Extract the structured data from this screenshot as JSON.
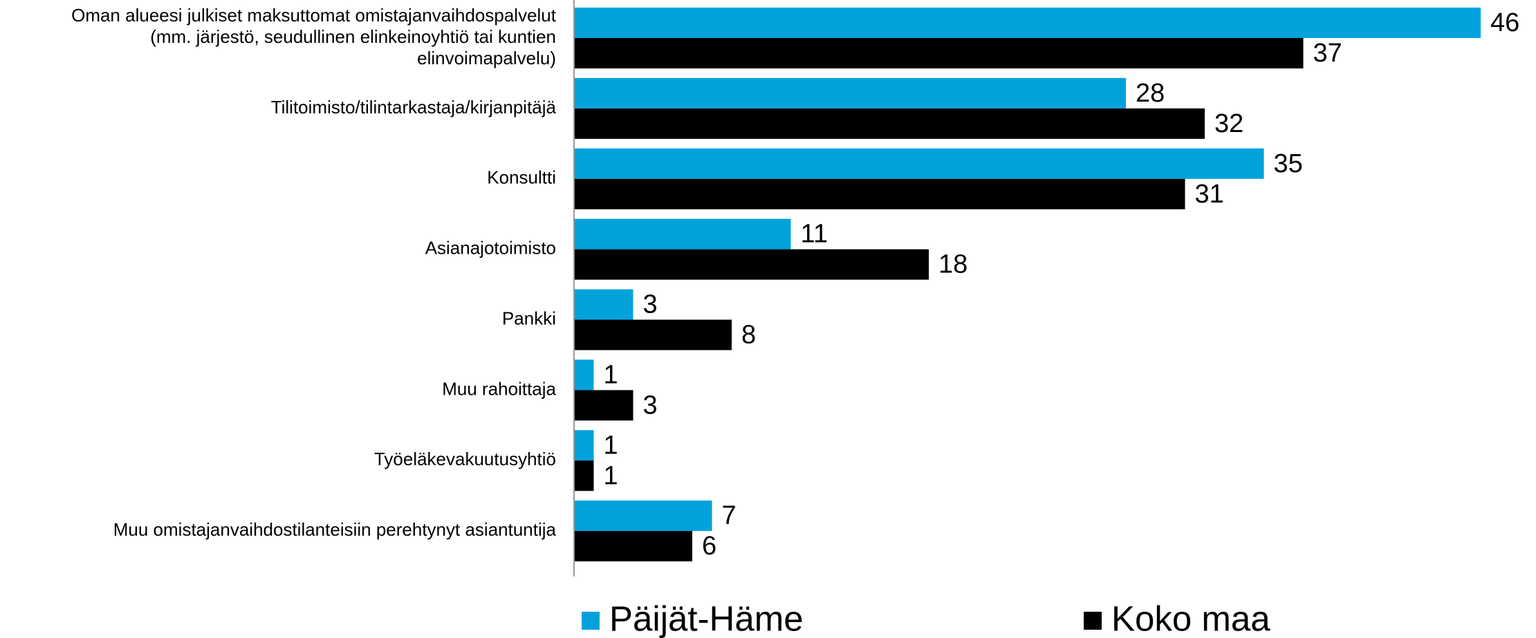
{
  "chart_data": {
    "type": "bar",
    "orientation": "horizontal",
    "categories": [
      "Oman alueesi julkiset maksuttomat omistajanvaihdospalvelut\n(mm. järjestö, seudullinen elinkeinoyhtiö tai  kuntien\nelinvoimapalvelu)",
      "Tilitoimisto/tilintarkastaja/kirjanpitäjä",
      "Konsultti",
      "Asianajotoimisto",
      "Pankki",
      "Muu rahoittaja",
      "Työeläkevakuutusyhtiö",
      "Muu omistajanvaihdostilanteisiin perehtynyt asiantuntija"
    ],
    "series": [
      {
        "name": "Päijät-Häme",
        "color": "#00a2dc",
        "values": [
          46,
          28,
          35,
          11,
          3,
          1,
          1,
          7
        ]
      },
      {
        "name": "Koko maa",
        "color": "#000000",
        "values": [
          37,
          32,
          31,
          18,
          8,
          3,
          1,
          6
        ]
      }
    ],
    "legend": "bottom"
  }
}
